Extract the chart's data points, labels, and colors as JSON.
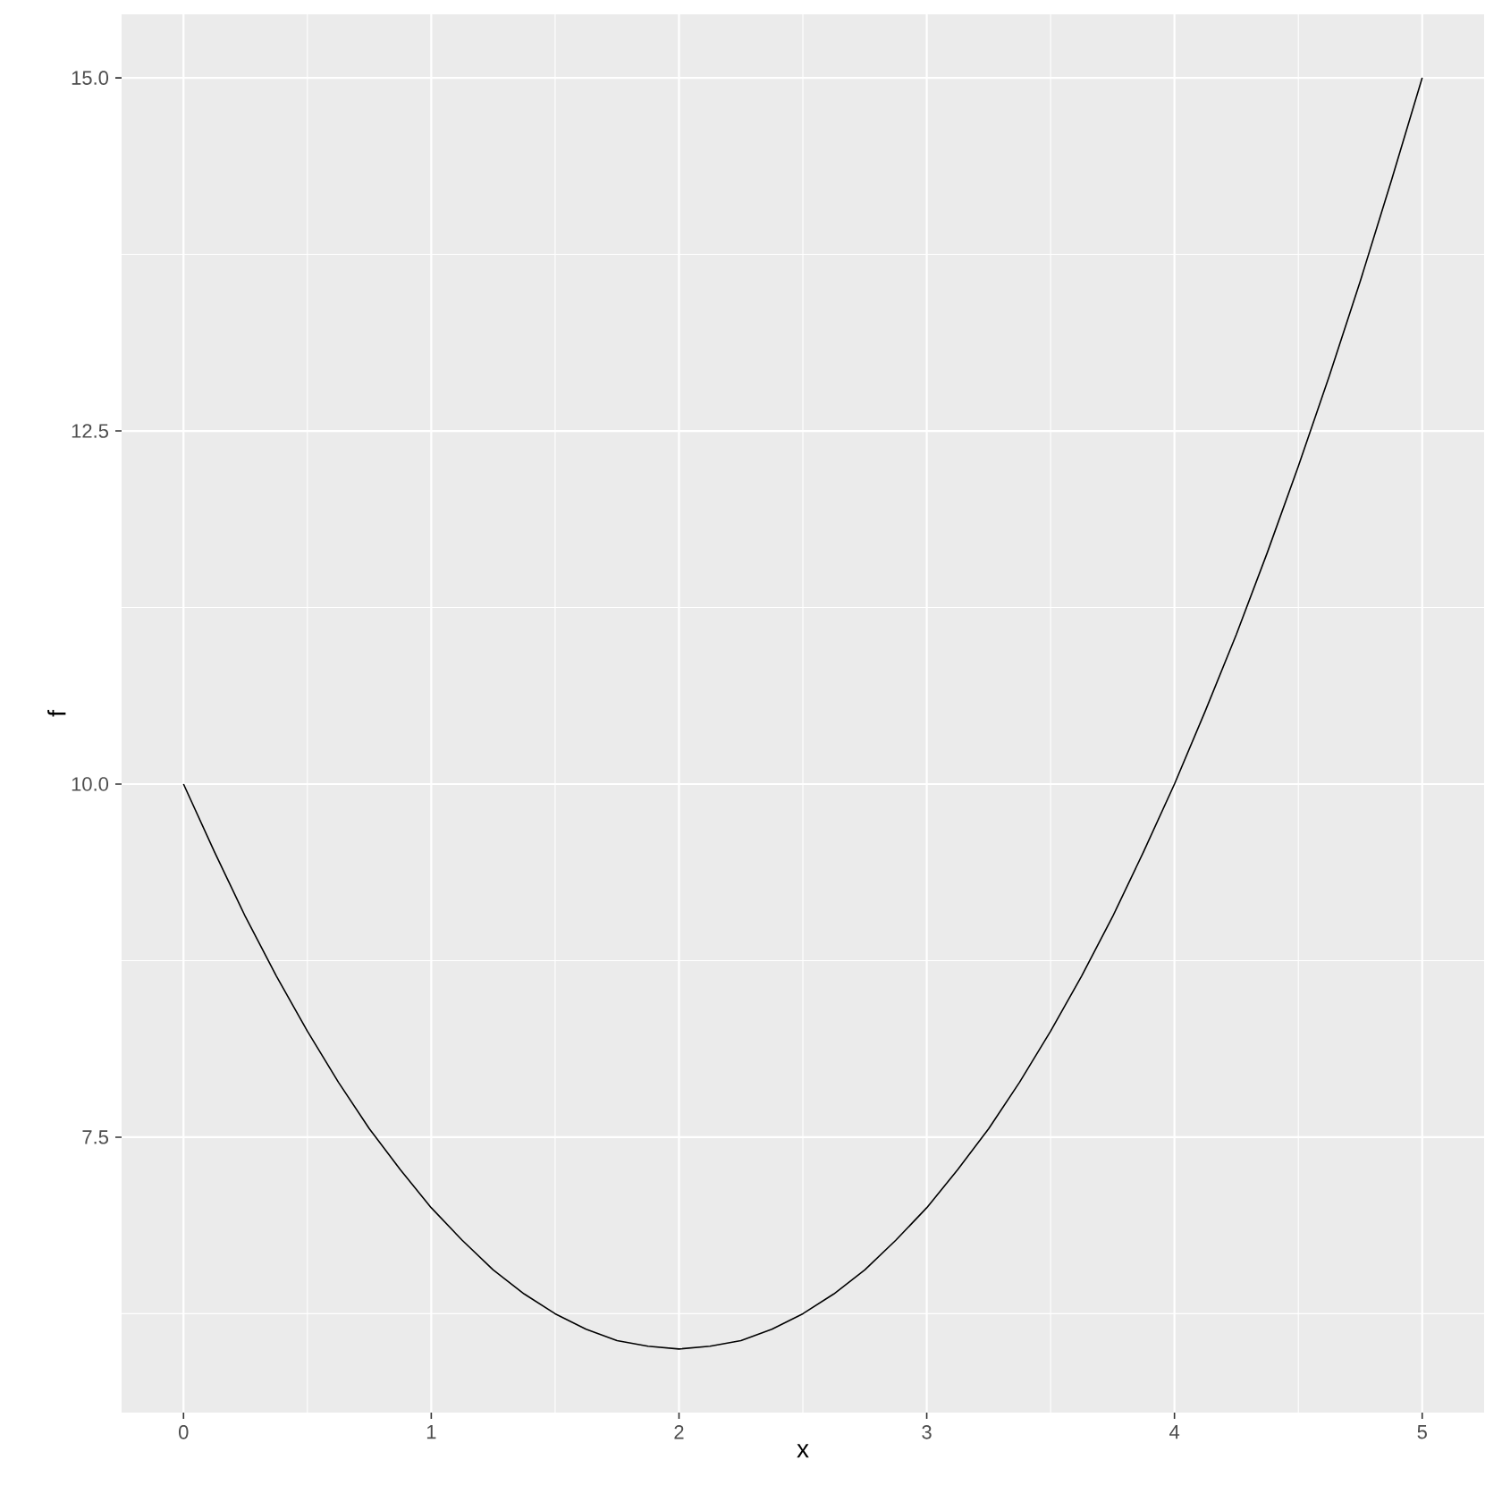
{
  "chart_data": {
    "type": "line",
    "xlabel": "x",
    "ylabel": "f",
    "x": [
      0,
      0.125,
      0.25,
      0.375,
      0.5,
      0.625,
      0.75,
      0.875,
      1,
      1.125,
      1.25,
      1.375,
      1.5,
      1.625,
      1.75,
      1.875,
      2,
      2.125,
      2.25,
      2.375,
      2.5,
      2.625,
      2.75,
      2.875,
      3,
      3.125,
      3.25,
      3.375,
      3.5,
      3.625,
      3.75,
      3.875,
      4,
      4.125,
      4.25,
      4.375,
      4.5,
      4.625,
      4.75,
      4.875,
      5
    ],
    "series": [
      {
        "color": "#000000",
        "values": [
          10,
          9.52,
          9.06,
          8.64,
          8.25,
          7.89,
          7.56,
          7.27,
          7,
          6.77,
          6.56,
          6.39,
          6.25,
          6.14,
          6.06,
          6.02,
          6,
          6.02,
          6.06,
          6.14,
          6.25,
          6.39,
          6.56,
          6.77,
          7,
          7.27,
          7.56,
          7.89,
          8.25,
          8.64,
          9.06,
          9.52,
          10,
          10.52,
          11.06,
          11.64,
          12.25,
          12.89,
          13.56,
          14.27,
          15
        ]
      }
    ],
    "xlim": [
      -0.25,
      5.25
    ],
    "ylim": [
      5.55,
      15.45
    ],
    "xticks": [
      0,
      1,
      2,
      3,
      4,
      5
    ],
    "yticks": [
      {
        "value": 7.5,
        "label": "7.5"
      },
      {
        "value": 10,
        "label": "10.0"
      },
      {
        "value": 12.5,
        "label": "12.5"
      },
      {
        "value": 15,
        "label": "15.0"
      }
    ],
    "grid": true,
    "marker": "none",
    "line_style": "solid"
  }
}
